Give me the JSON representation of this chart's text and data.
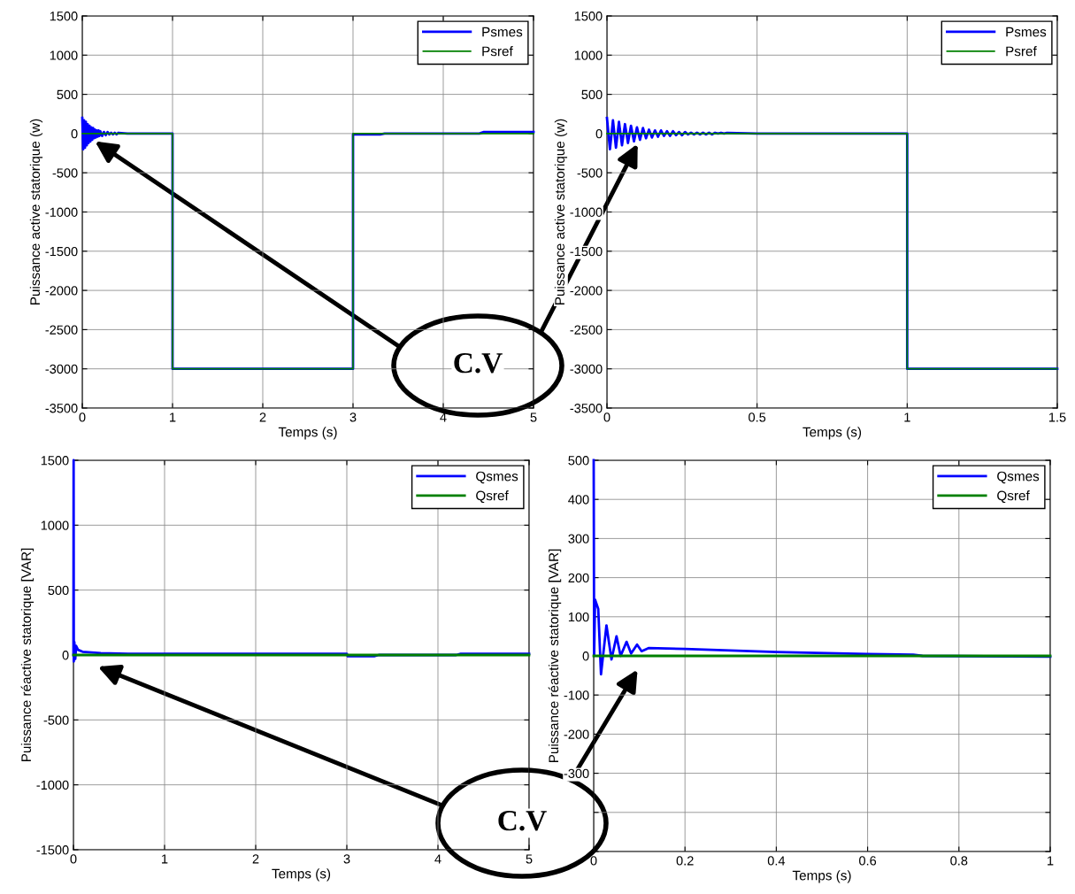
{
  "chart_data": [
    {
      "type": "line",
      "xlabel": "Temps (s)",
      "ylabel": "Puissance active statorique (w)",
      "xlim": [
        0,
        5
      ],
      "xticks": [
        0,
        1,
        2,
        3,
        4,
        5
      ],
      "ylim": [
        -3500,
        1500
      ],
      "yticks": [
        -3500,
        -3000,
        -2500,
        -2000,
        -1500,
        -1000,
        -500,
        0,
        500,
        1000,
        1500
      ],
      "grid": true,
      "legend": "top right",
      "annotations": [
        "C.V"
      ],
      "series": [
        {
          "name": "Psmes",
          "color": "#0000ff",
          "x": [
            0,
            0.01,
            0.02,
            0.03,
            0.04,
            0.05,
            0.06,
            0.07,
            0.08,
            0.09,
            0.1,
            0.11,
            0.12,
            0.13,
            0.14,
            0.15,
            0.16,
            0.17,
            0.18,
            0.19,
            0.2,
            0.22,
            0.24,
            0.26,
            0.28,
            0.3,
            0.32,
            0.34,
            0.36,
            0.38,
            0.4,
            0.5,
            1.0,
            1.0,
            2.0,
            3.0,
            3.0,
            3.3,
            3.35,
            4.4,
            4.45,
            5.0
          ],
          "values": [
            200,
            -200,
            170,
            -180,
            150,
            -150,
            120,
            -120,
            100,
            -100,
            80,
            -80,
            70,
            -60,
            50,
            -50,
            40,
            -40,
            40,
            -30,
            30,
            -30,
            20,
            -20,
            20,
            -10,
            10,
            -10,
            10,
            -10,
            10,
            0,
            0,
            -3000,
            -3000,
            -3000,
            -10,
            -10,
            0,
            0,
            20,
            20
          ]
        },
        {
          "name": "Psref",
          "color": "#008000",
          "x": [
            0,
            1,
            1,
            3,
            3,
            5
          ],
          "values": [
            0,
            0,
            -3000,
            -3000,
            0,
            0
          ]
        }
      ]
    },
    {
      "type": "line",
      "xlabel": "Temps (s)",
      "ylabel": "Puissance active statorique (w)",
      "xlim": [
        0,
        1.5
      ],
      "xticks": [
        0,
        0.5,
        1,
        1.5
      ],
      "ylim": [
        -3500,
        1500
      ],
      "yticks": [
        -3500,
        -3000,
        -2500,
        -2000,
        -1500,
        -1000,
        -500,
        0,
        500,
        1000,
        1500
      ],
      "grid": true,
      "legend": "top right",
      "series": [
        {
          "name": "Psmes",
          "color": "#0000ff",
          "x": [
            0,
            0.01,
            0.02,
            0.03,
            0.04,
            0.05,
            0.06,
            0.07,
            0.08,
            0.09,
            0.1,
            0.11,
            0.12,
            0.13,
            0.14,
            0.15,
            0.16,
            0.17,
            0.18,
            0.19,
            0.2,
            0.21,
            0.22,
            0.23,
            0.24,
            0.25,
            0.26,
            0.27,
            0.28,
            0.29,
            0.3,
            0.31,
            0.32,
            0.33,
            0.34,
            0.35,
            0.36,
            0.37,
            0.38,
            0.39,
            0.4,
            0.5,
            1.0,
            1.0,
            1.5
          ],
          "values": [
            200,
            -200,
            170,
            -180,
            150,
            -150,
            120,
            -120,
            100,
            -100,
            80,
            -80,
            70,
            -60,
            50,
            -50,
            40,
            -40,
            40,
            -30,
            30,
            -30,
            30,
            -20,
            20,
            -20,
            20,
            -10,
            10,
            -10,
            10,
            -10,
            10,
            -10,
            10,
            -10,
            10,
            0,
            10,
            0,
            10,
            0,
            0,
            -3000,
            -3000
          ]
        },
        {
          "name": "Psref",
          "color": "#008000",
          "x": [
            0,
            1,
            1,
            1.5
          ],
          "values": [
            0,
            0,
            -3000,
            -3000
          ]
        }
      ]
    },
    {
      "type": "line",
      "xlabel": "Temps (s)",
      "ylabel": "Puissance réactive statorique [VAR]",
      "xlim": [
        0,
        5
      ],
      "xticks": [
        0,
        1,
        2,
        3,
        4,
        5
      ],
      "ylim": [
        -1500,
        1500
      ],
      "yticks": [
        -1500,
        -1000,
        -500,
        0,
        500,
        1000,
        1500
      ],
      "grid": true,
      "legend": "top right",
      "annotations": [
        "C.V"
      ],
      "series": [
        {
          "name": "Qsmes",
          "color": "#0000ff",
          "x": [
            0,
            0.002,
            0.004,
            0.01,
            0.02,
            0.03,
            0.05,
            0.1,
            0.3,
            0.6,
            3.0,
            3.01,
            3.3,
            3.35,
            4.2,
            4.25,
            5.0
          ],
          "values": [
            0,
            1500,
            -50,
            100,
            -30,
            70,
            40,
            25,
            15,
            10,
            10,
            -10,
            -10,
            0,
            0,
            10,
            10
          ]
        },
        {
          "name": "Qsref",
          "color": "#008000",
          "x": [
            0,
            5
          ],
          "values": [
            0,
            0
          ]
        }
      ]
    },
    {
      "type": "line",
      "xlabel": "Temps (s)",
      "ylabel": "Puissance réactive statorique [VAR]",
      "xlim": [
        0,
        1
      ],
      "xticks": [
        0,
        0.2,
        0.4,
        0.6,
        0.8,
        1
      ],
      "ylim": [
        -500,
        500
      ],
      "yticks": [
        {
          "value": -500,
          "label": null
        },
        {
          "value": -400,
          "label": null
        },
        -300,
        -200,
        -100,
        0,
        100,
        200,
        300,
        400,
        500
      ],
      "grid": true,
      "legend": "top right",
      "series": [
        {
          "name": "Qsmes",
          "color": "#0000ff",
          "x": [
            0,
            0.001,
            0.003,
            0.01,
            0.016,
            0.028,
            0.039,
            0.05,
            0.059,
            0.072,
            0.082,
            0.095,
            0.105,
            0.12,
            0.2,
            0.4,
            0.6,
            0.7,
            0.72,
            1.0
          ],
          "values": [
            500,
            0,
            144,
            120,
            -47,
            78,
            -9,
            50,
            0,
            36,
            6,
            29,
            12,
            20,
            18,
            10,
            5,
            3,
            0,
            -2
          ]
        },
        {
          "name": "Qsref",
          "color": "#008000",
          "x": [
            0,
            1
          ],
          "values": [
            0,
            0
          ]
        }
      ]
    }
  ]
}
